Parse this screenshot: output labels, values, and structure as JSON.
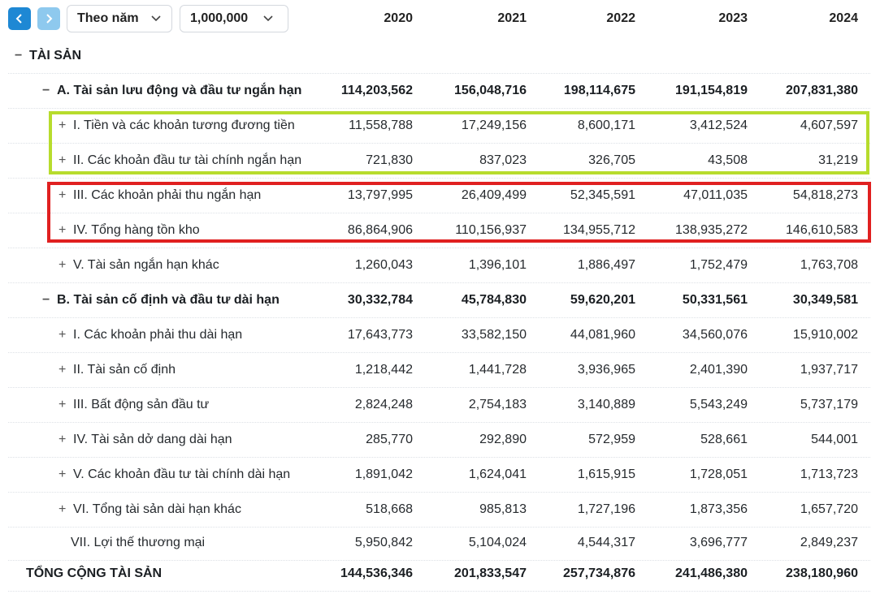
{
  "toolbar": {
    "prev_icon": "chevron-left-icon",
    "next_icon": "chevron-right-icon",
    "period_select": "Theo năm",
    "unit_select": "1,000,000"
  },
  "years": [
    "2020",
    "2021",
    "2022",
    "2023",
    "2024"
  ],
  "section_header": "TÀI SẢN",
  "rows": [
    {
      "sign": "−",
      "label": "A. Tài sản lưu động và đầu tư ngắn hạn",
      "values": [
        "114,203,562",
        "156,048,716",
        "198,114,675",
        "191,154,819",
        "207,831,380"
      ]
    },
    {
      "sign": "+",
      "label": "I. Tiền và các khoản tương đương tiền",
      "values": [
        "11,558,788",
        "17,249,156",
        "8,600,171",
        "3,412,524",
        "4,607,597"
      ]
    },
    {
      "sign": "+",
      "label": "II. Các khoản đầu tư tài chính ngắn hạn",
      "values": [
        "721,830",
        "837,023",
        "326,705",
        "43,508",
        "31,219"
      ]
    },
    {
      "sign": "+",
      "label": "III. Các khoản phải thu ngắn hạn",
      "values": [
        "13,797,995",
        "26,409,499",
        "52,345,591",
        "47,011,035",
        "54,818,273"
      ]
    },
    {
      "sign": "+",
      "label": "IV. Tổng hàng tồn kho",
      "values": [
        "86,864,906",
        "110,156,937",
        "134,955,712",
        "138,935,272",
        "146,610,583"
      ]
    },
    {
      "sign": "+",
      "label": "V. Tài sản ngắn hạn khác",
      "values": [
        "1,260,043",
        "1,396,101",
        "1,886,497",
        "1,752,479",
        "1,763,708"
      ]
    },
    {
      "sign": "−",
      "label": "B. Tài sản cố định và đầu tư dài hạn",
      "values": [
        "30,332,784",
        "45,784,830",
        "59,620,201",
        "50,331,561",
        "30,349,581"
      ]
    },
    {
      "sign": "+",
      "label": "I. Các khoản phải thu dài hạn",
      "values": [
        "17,643,773",
        "33,582,150",
        "44,081,960",
        "34,560,076",
        "15,910,002"
      ]
    },
    {
      "sign": "+",
      "label": "II. Tài sản cố định",
      "values": [
        "1,218,442",
        "1,441,728",
        "3,936,965",
        "2,401,390",
        "1,937,717"
      ]
    },
    {
      "sign": "+",
      "label": "III. Bất động sản đầu tư",
      "values": [
        "2,824,248",
        "2,754,183",
        "3,140,889",
        "5,543,249",
        "5,737,179"
      ]
    },
    {
      "sign": "+",
      "label": "IV. Tài sản dở dang dài hạn",
      "values": [
        "285,770",
        "292,890",
        "572,959",
        "528,661",
        "544,001"
      ]
    },
    {
      "sign": "+",
      "label": "V. Các khoản đầu tư tài chính dài hạn",
      "values": [
        "1,891,042",
        "1,624,041",
        "1,615,915",
        "1,728,051",
        "1,713,723"
      ]
    },
    {
      "sign": "+",
      "label": "VI. Tổng tài sản dài hạn khác",
      "values": [
        "518,668",
        "985,813",
        "1,727,196",
        "1,873,356",
        "1,657,720"
      ]
    },
    {
      "sign": "",
      "label": "VII. Lợi thế thương mại",
      "values": [
        "5,950,842",
        "5,104,024",
        "4,544,317",
        "3,696,777",
        "2,849,237"
      ]
    }
  ],
  "total": {
    "label": "TỔNG CỘNG TÀI SẢN",
    "values": [
      "144,536,346",
      "201,833,547",
      "257,734,876",
      "241,486,380",
      "238,180,960"
    ]
  },
  "highlights": {
    "green": "#b7dc2d",
    "red": "#e02020"
  }
}
